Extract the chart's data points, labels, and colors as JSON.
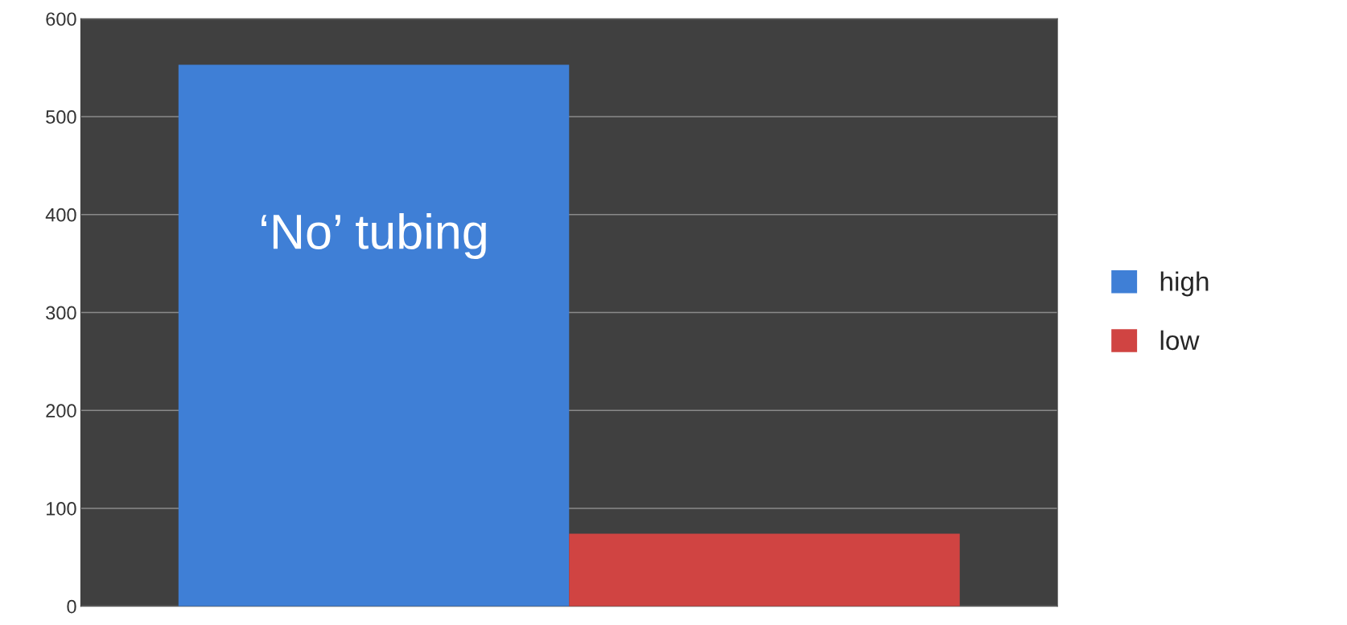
{
  "chart_data": {
    "type": "bar",
    "categories": [
      null
    ],
    "series": [
      {
        "name": "high",
        "color": "#3f7fd6",
        "values": [
          553
        ]
      },
      {
        "name": "low",
        "color": "#d04442",
        "values": [
          74
        ]
      }
    ],
    "ylim": [
      0,
      600
    ],
    "yticks": [
      0,
      100,
      200,
      300,
      400,
      500,
      600
    ],
    "grid": "y",
    "legend": "right",
    "annotations": [
      "‘No’ tubing"
    ]
  }
}
